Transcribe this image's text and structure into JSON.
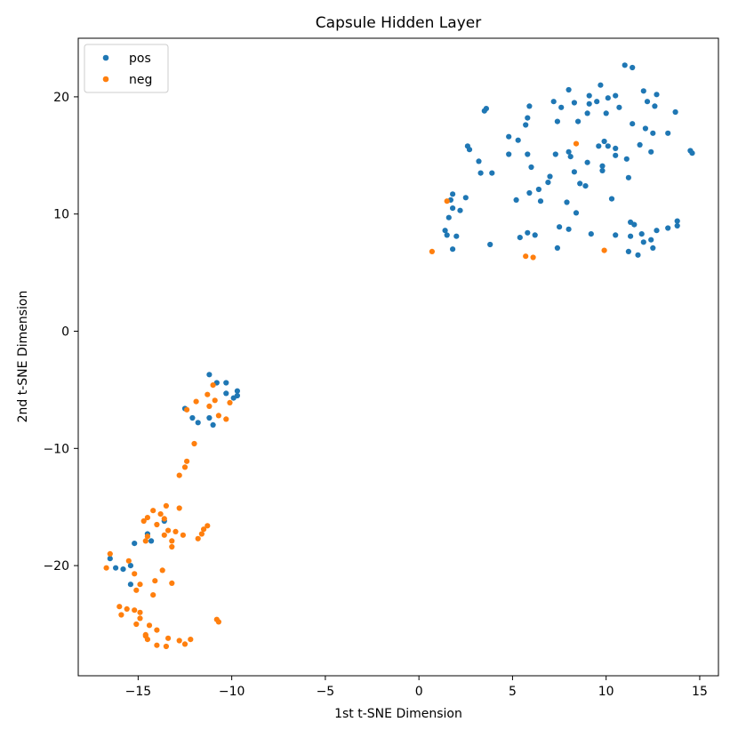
{
  "chart_data": {
    "type": "scatter",
    "title": "Capsule Hidden Layer",
    "xlabel": "1st t-SNE Dimension",
    "ylabel": "2nd t-SNE Dimension",
    "xlim": [
      -18.2,
      16.0
    ],
    "ylim": [
      -29.4,
      25.0
    ],
    "xticks": [
      -15,
      -10,
      -5,
      0,
      5,
      10,
      15
    ],
    "xtick_labels": [
      "−15",
      "−10",
      "−5",
      "0",
      "5",
      "10",
      "15"
    ],
    "yticks": [
      -20,
      -10,
      0,
      10,
      20
    ],
    "ytick_labels": [
      "−20",
      "−10",
      "0",
      "10",
      "20"
    ],
    "grid": false,
    "legend_position": "top-left",
    "series": [
      {
        "name": "pos",
        "color": "#1f77b4",
        "points": [
          [
            11.0,
            22.7
          ],
          [
            11.4,
            22.5
          ],
          [
            9.7,
            21.0
          ],
          [
            8.0,
            20.6
          ],
          [
            12.0,
            20.5
          ],
          [
            12.7,
            20.2
          ],
          [
            9.1,
            20.1
          ],
          [
            10.5,
            20.1
          ],
          [
            7.2,
            19.6
          ],
          [
            8.3,
            19.5
          ],
          [
            9.5,
            19.6
          ],
          [
            10.1,
            19.9
          ],
          [
            12.2,
            19.6
          ],
          [
            12.6,
            19.2
          ],
          [
            5.9,
            19.2
          ],
          [
            7.6,
            19.1
          ],
          [
            9.1,
            19.4
          ],
          [
            10.7,
            19.1
          ],
          [
            3.6,
            19.0
          ],
          [
            3.5,
            18.8
          ],
          [
            13.7,
            18.7
          ],
          [
            9.0,
            18.6
          ],
          [
            10.0,
            18.6
          ],
          [
            5.8,
            18.2
          ],
          [
            8.5,
            17.9
          ],
          [
            7.4,
            17.9
          ],
          [
            5.7,
            17.6
          ],
          [
            11.4,
            17.7
          ],
          [
            12.1,
            17.3
          ],
          [
            12.5,
            16.9
          ],
          [
            13.3,
            16.9
          ],
          [
            4.8,
            16.6
          ],
          [
            5.3,
            16.3
          ],
          [
            9.9,
            16.2
          ],
          [
            10.1,
            15.8
          ],
          [
            10.5,
            15.6
          ],
          [
            11.8,
            15.9
          ],
          [
            9.6,
            15.8
          ],
          [
            2.6,
            15.8
          ],
          [
            2.7,
            15.5
          ],
          [
            12.4,
            15.3
          ],
          [
            14.5,
            15.4
          ],
          [
            14.6,
            15.2
          ],
          [
            4.8,
            15.1
          ],
          [
            5.8,
            15.1
          ],
          [
            7.3,
            15.1
          ],
          [
            8.0,
            15.3
          ],
          [
            8.1,
            14.9
          ],
          [
            10.5,
            15.0
          ],
          [
            11.1,
            14.7
          ],
          [
            3.2,
            14.5
          ],
          [
            9.0,
            14.4
          ],
          [
            6.0,
            14.0
          ],
          [
            9.8,
            14.1
          ],
          [
            9.8,
            13.7
          ],
          [
            8.3,
            13.6
          ],
          [
            3.3,
            13.5
          ],
          [
            3.9,
            13.5
          ],
          [
            11.2,
            13.1
          ],
          [
            7.0,
            13.2
          ],
          [
            6.9,
            12.7
          ],
          [
            8.6,
            12.6
          ],
          [
            8.9,
            12.4
          ],
          [
            6.4,
            12.1
          ],
          [
            5.9,
            11.8
          ],
          [
            1.8,
            11.7
          ],
          [
            1.7,
            11.2
          ],
          [
            2.5,
            11.4
          ],
          [
            5.2,
            11.2
          ],
          [
            6.5,
            11.1
          ],
          [
            7.9,
            11.0
          ],
          [
            10.3,
            11.3
          ],
          [
            8.4,
            10.1
          ],
          [
            1.8,
            10.5
          ],
          [
            2.2,
            10.3
          ],
          [
            1.6,
            9.7
          ],
          [
            11.3,
            9.3
          ],
          [
            11.5,
            9.1
          ],
          [
            13.8,
            9.4
          ],
          [
            13.8,
            9.0
          ],
          [
            13.3,
            8.8
          ],
          [
            12.7,
            8.6
          ],
          [
            7.5,
            8.9
          ],
          [
            8.0,
            8.7
          ],
          [
            1.4,
            8.6
          ],
          [
            1.5,
            8.2
          ],
          [
            2.0,
            8.1
          ],
          [
            5.8,
            8.4
          ],
          [
            6.2,
            8.2
          ],
          [
            5.4,
            8.0
          ],
          [
            9.2,
            8.3
          ],
          [
            10.5,
            8.2
          ],
          [
            11.3,
            8.1
          ],
          [
            11.9,
            8.3
          ],
          [
            12.4,
            7.8
          ],
          [
            12.0,
            7.6
          ],
          [
            3.8,
            7.4
          ],
          [
            7.4,
            7.1
          ],
          [
            12.5,
            7.1
          ],
          [
            1.8,
            7.0
          ],
          [
            11.2,
            6.8
          ],
          [
            11.7,
            6.5
          ],
          [
            -11.2,
            -3.7
          ],
          [
            -10.8,
            -4.4
          ],
          [
            -10.3,
            -4.4
          ],
          [
            -9.7,
            -5.1
          ],
          [
            -10.3,
            -5.3
          ],
          [
            -9.7,
            -5.5
          ],
          [
            -9.9,
            -5.7
          ],
          [
            -12.5,
            -6.6
          ],
          [
            -12.1,
            -7.4
          ],
          [
            -11.8,
            -7.8
          ],
          [
            -11.2,
            -7.4
          ],
          [
            -11.0,
            -8.0
          ],
          [
            -13.6,
            -16.2
          ],
          [
            -14.5,
            -17.3
          ],
          [
            -14.3,
            -17.9
          ],
          [
            -15.2,
            -18.1
          ],
          [
            -16.5,
            -19.4
          ],
          [
            -16.2,
            -20.2
          ],
          [
            -15.4,
            -20.0
          ],
          [
            -15.8,
            -20.3
          ],
          [
            -15.4,
            -21.6
          ]
        ]
      },
      {
        "name": "neg",
        "color": "#ff7f0e",
        "points": [
          [
            8.4,
            16.0
          ],
          [
            1.5,
            11.1
          ],
          [
            0.7,
            6.8
          ],
          [
            5.7,
            6.4
          ],
          [
            6.1,
            6.3
          ],
          [
            9.9,
            6.9
          ],
          [
            -11.0,
            -4.6
          ],
          [
            -11.3,
            -5.4
          ],
          [
            -10.9,
            -5.9
          ],
          [
            -11.9,
            -6.0
          ],
          [
            -10.1,
            -6.1
          ],
          [
            -11.2,
            -6.4
          ],
          [
            -12.4,
            -6.7
          ],
          [
            -10.7,
            -7.2
          ],
          [
            -10.3,
            -7.5
          ],
          [
            -12.0,
            -9.6
          ],
          [
            -12.4,
            -11.1
          ],
          [
            -12.5,
            -11.6
          ],
          [
            -12.8,
            -12.3
          ],
          [
            -13.5,
            -14.9
          ],
          [
            -12.8,
            -15.1
          ],
          [
            -14.2,
            -15.3
          ],
          [
            -13.8,
            -15.6
          ],
          [
            -13.6,
            -16.0
          ],
          [
            -14.5,
            -15.9
          ],
          [
            -14.7,
            -16.2
          ],
          [
            -14.0,
            -16.5
          ],
          [
            -11.3,
            -16.6
          ],
          [
            -11.5,
            -16.9
          ],
          [
            -13.4,
            -17.0
          ],
          [
            -13.0,
            -17.1
          ],
          [
            -13.6,
            -17.4
          ],
          [
            -11.6,
            -17.3
          ],
          [
            -12.6,
            -17.4
          ],
          [
            -14.5,
            -17.5
          ],
          [
            -11.8,
            -17.7
          ],
          [
            -13.2,
            -17.9
          ],
          [
            -14.6,
            -17.9
          ],
          [
            -13.2,
            -18.4
          ],
          [
            -16.5,
            -19.0
          ],
          [
            -15.5,
            -19.6
          ],
          [
            -16.7,
            -20.2
          ],
          [
            -15.2,
            -20.7
          ],
          [
            -13.7,
            -20.4
          ],
          [
            -14.1,
            -21.3
          ],
          [
            -13.2,
            -21.5
          ],
          [
            -14.9,
            -21.6
          ],
          [
            -15.1,
            -22.1
          ],
          [
            -14.2,
            -22.5
          ],
          [
            -16.0,
            -23.5
          ],
          [
            -15.6,
            -23.7
          ],
          [
            -15.2,
            -23.8
          ],
          [
            -15.9,
            -24.2
          ],
          [
            -14.9,
            -24.0
          ],
          [
            -14.9,
            -24.5
          ],
          [
            -10.8,
            -24.6
          ],
          [
            -10.7,
            -24.8
          ],
          [
            -15.1,
            -25.0
          ],
          [
            -14.4,
            -25.1
          ],
          [
            -14.0,
            -25.5
          ],
          [
            -14.6,
            -25.9
          ],
          [
            -14.6,
            -26.0
          ],
          [
            -13.4,
            -26.2
          ],
          [
            -14.5,
            -26.3
          ],
          [
            -12.8,
            -26.4
          ],
          [
            -12.2,
            -26.3
          ],
          [
            -12.5,
            -26.7
          ],
          [
            -14.0,
            -26.8
          ],
          [
            -13.5,
            -26.9
          ]
        ]
      }
    ]
  }
}
